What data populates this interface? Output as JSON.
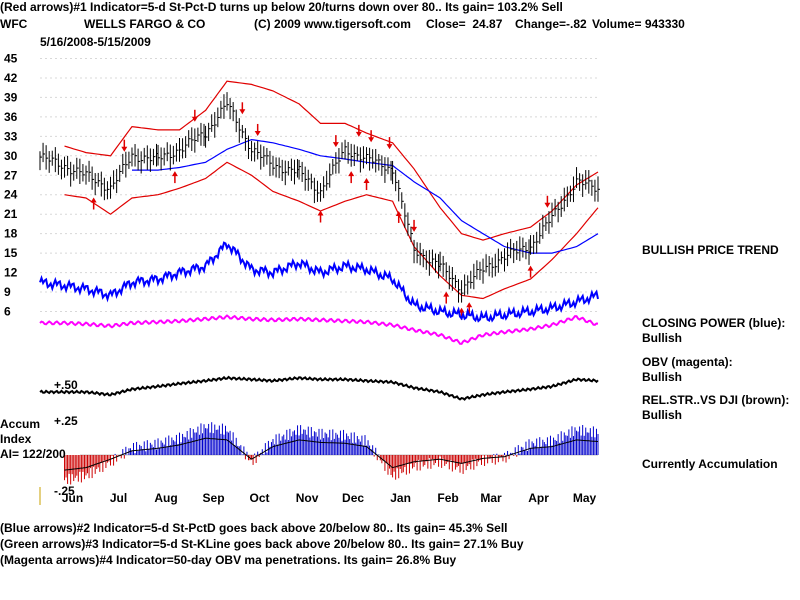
{
  "header": {
    "line1": "(Red arrows)#1 Indicator=5-d St-Pct-D turns up below 20/turns down over 80.. Its gain= 103.2% Sell",
    "ticker": "WFC",
    "company": "WELLS FARGO & CO",
    "copyright": "(C) 2009 www.tigersoft.com",
    "close_label": "Close=",
    "close_value": "24.87",
    "change_label": "Change=",
    "change_value": "-.82",
    "volume_label": "Volume=",
    "volume_value": "943330",
    "date_range": "5/16/2008-5/15/2009"
  },
  "right_labels": {
    "trend": "BULLISH PRICE TREND",
    "closing_power_label": "CLOSING POWER (blue):",
    "closing_power_value": "Bullish",
    "obv_label": "OBV (magenta):",
    "obv_value": "Bullish",
    "relstr_label": "REL.STR..VS DJI (brown):",
    "relstr_value": "Bullish",
    "accumulation": "Currently Accumulation"
  },
  "accum_panel": {
    "label_line1": "Accum",
    "label_line2": "Index",
    "label_line3": "AI= 122/200",
    "top_tick": "+.25",
    "bottom_tick": "-.25",
    "relstr_tick": "+.50"
  },
  "footer": {
    "line1": "(Blue arrows)#2 Indicator=5-d St-PctD goes back above 20/below 80.. Its gain= 45.3% Sell",
    "line2": "(Green arrows)#3 Indicator=5-d St-KLine goes back above 20/below 80.. Its gain= 27.1% Buy",
    "line3": "(Magenta arrows)#4 Indicator=50-day OBV ma penetrations. Its gain= 26.8% Buy"
  },
  "colors": {
    "price_bars": "#000000",
    "bands": "#e00000",
    "moving_average": "#0000ff",
    "closing_power": "#0000ff",
    "obv": "#ff00ff",
    "rel_strength": "#000000",
    "accum_positive": "#0000cc",
    "accum_negative": "#cc0000",
    "arrows": "#e00000"
  },
  "chart_data": {
    "type": "line",
    "ylim": [
      5,
      46
    ],
    "y_ticks": [
      45,
      42,
      39,
      36,
      33,
      30,
      27,
      24,
      21,
      18,
      15,
      12,
      9,
      6
    ],
    "x_tick_labels": [
      "Jun",
      "Jul",
      "Aug",
      "Sep",
      "Oct",
      "Nov",
      "Dec",
      "Jan",
      "Feb",
      "Mar",
      "Apr",
      "May"
    ],
    "x": [
      "2008-05-16",
      "2008-06-01",
      "2008-06-15",
      "2008-07-01",
      "2008-07-15",
      "2008-08-01",
      "2008-08-15",
      "2008-09-01",
      "2008-09-15",
      "2008-10-01",
      "2008-10-15",
      "2008-11-01",
      "2008-11-15",
      "2008-12-01",
      "2008-12-15",
      "2009-01-01",
      "2009-01-15",
      "2009-02-01",
      "2009-02-15",
      "2009-03-01",
      "2009-03-15",
      "2009-04-01",
      "2009-04-15",
      "2009-05-01",
      "2009-05-15"
    ],
    "series": [
      {
        "values": [
          29.8,
          28.4,
          27.0,
          25.0,
          30.0,
          29.5,
          31.0,
          33.5,
          38.0,
          31.0,
          28.5,
          27.5,
          24.5,
          31.0,
          29.5,
          28.0,
          15.5,
          13.0,
          9.5,
          12.5,
          14.5,
          16.0,
          20.5,
          26.0,
          24.9
        ]
      },
      {
        "values": [
          null,
          null,
          null,
          null,
          27.8,
          27.8,
          28.2,
          29.0,
          31.0,
          32.5,
          32.0,
          31.0,
          30.0,
          29.5,
          29.0,
          28.5,
          26.0,
          23.5,
          20.0,
          18.0,
          16.0,
          15.0,
          15.0,
          16.0,
          18.0
        ]
      },
      {
        "values": [
          null,
          31.5,
          30.5,
          30.0,
          34.5,
          34.0,
          34.0,
          37.0,
          41.5,
          41.0,
          40.0,
          38.0,
          35.0,
          35.0,
          33.5,
          32.0,
          28.0,
          22.0,
          18.0,
          17.0,
          18.0,
          19.0,
          21.5,
          25.5,
          27.5
        ]
      },
      {
        "values": [
          null,
          24.0,
          23.5,
          21.0,
          23.5,
          24.0,
          25.0,
          26.5,
          29.0,
          27.0,
          24.5,
          23.0,
          21.5,
          23.0,
          24.0,
          23.0,
          16.0,
          11.5,
          8.5,
          8.0,
          9.5,
          11.0,
          14.0,
          18.0,
          22.0
        ]
      }
    ],
    "arrows": {
      "sell_dates": [
        "2008-07-10",
        "2008-08-25",
        "2008-09-25",
        "2008-10-05",
        "2008-11-25",
        "2008-12-10",
        "2008-12-18",
        "2008-12-30",
        "2009-01-15",
        "2009-04-12"
      ],
      "buy_dates": [
        "2008-06-20",
        "2008-08-12",
        "2008-11-15",
        "2008-12-05",
        "2008-12-15",
        "2009-01-05",
        "2009-02-05",
        "2009-02-15",
        "2009-02-20",
        "2009-04-01"
      ]
    },
    "accumulation_index": {
      "ylim": [
        -0.25,
        0.25
      ],
      "values": [
        null,
        -0.18,
        -0.15,
        -0.05,
        0.05,
        0.08,
        0.12,
        0.2,
        0.18,
        -0.05,
        0.1,
        0.18,
        0.15,
        0.14,
        0.1,
        -0.15,
        -0.08,
        -0.05,
        -0.1,
        -0.04,
        -0.02,
        0.08,
        0.1,
        0.18,
        0.16
      ]
    },
    "closing_power": {
      "values": [
        10.5,
        10.0,
        9.5,
        8.5,
        10.5,
        11.0,
        12.0,
        13.0,
        16.5,
        12.5,
        12.0,
        13.5,
        12.0,
        13.0,
        12.5,
        11.0,
        7.0,
        6.0,
        5.5,
        5.0,
        5.5,
        6.0,
        6.5,
        7.5,
        8.5
      ]
    },
    "obv": {
      "values": [
        5.2,
        5.2,
        5.1,
        4.9,
        5.2,
        5.3,
        5.4,
        5.6,
        5.8,
        5.6,
        5.5,
        5.6,
        5.5,
        5.4,
        5.3,
        5.0,
        4.5,
        4.0,
        3.2,
        4.0,
        4.3,
        4.6,
        5.0,
        5.8,
        5.0
      ]
    },
    "rel_strength": {
      "values": [
        2.0,
        2.0,
        2.0,
        1.8,
        2.2,
        2.4,
        2.6,
        2.8,
        3.0,
        2.9,
        2.8,
        3.0,
        2.9,
        2.9,
        2.8,
        2.7,
        2.3,
        2.0,
        1.5,
        1.8,
        2.0,
        2.2,
        2.4,
        2.9,
        2.8
      ]
    }
  }
}
